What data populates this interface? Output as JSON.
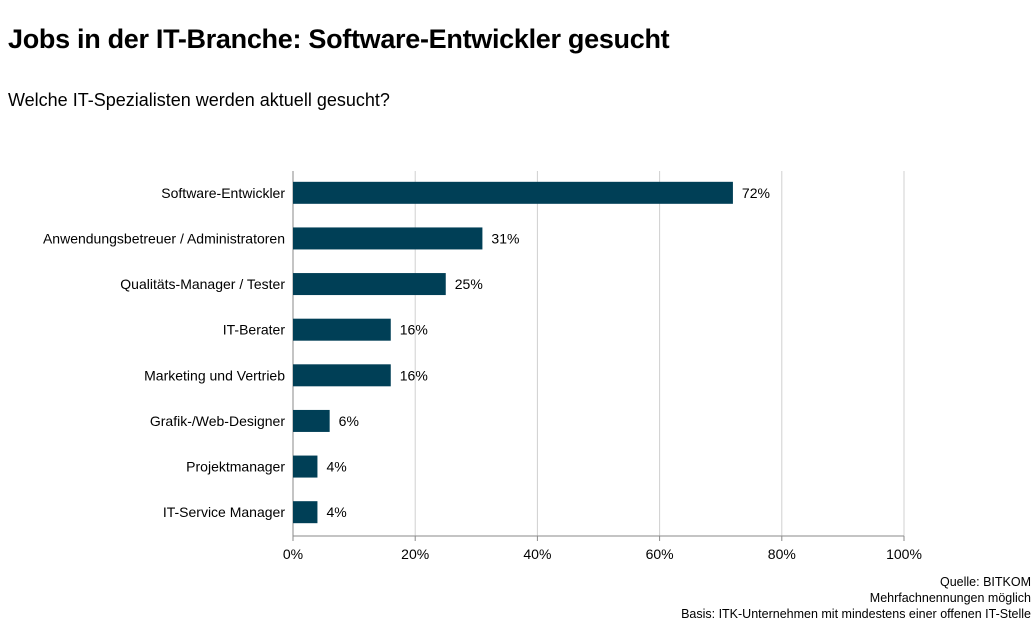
{
  "title": "Jobs in der IT-Branche: Software-Entwickler gesucht",
  "subtitle": "Welche IT-Spezialisten  werden aktuell gesucht?",
  "chart_data": {
    "type": "bar",
    "orientation": "horizontal",
    "categories": [
      "Software-Entwickler",
      "Anwendungsbetreuer / Administratoren",
      "Qualitäts-Manager / Tester",
      "IT-Berater",
      "Marketing und Vertrieb",
      "Grafik-/Web-Designer",
      "Projektmanager",
      "IT-Service Manager"
    ],
    "values": [
      72,
      31,
      25,
      16,
      16,
      6,
      4,
      4
    ],
    "value_labels": [
      "72%",
      "31%",
      "25%",
      "16%",
      "16%",
      "6%",
      "4%",
      "4%"
    ],
    "xlim": [
      0,
      100
    ],
    "x_ticks": [
      0,
      20,
      40,
      60,
      80,
      100
    ],
    "x_tick_labels": [
      "0%",
      "20%",
      "40%",
      "60%",
      "80%",
      "100%"
    ],
    "grid": true,
    "bar_color": "#003f56",
    "grid_color": "#d0d0d0"
  },
  "footnotes": {
    "source": "Quelle: BITKOM",
    "note": "Mehrfachnennungen möglich",
    "basis": "Basis: ITK-Unternehmen mit mindestens einer offenen IT-Stelle"
  }
}
